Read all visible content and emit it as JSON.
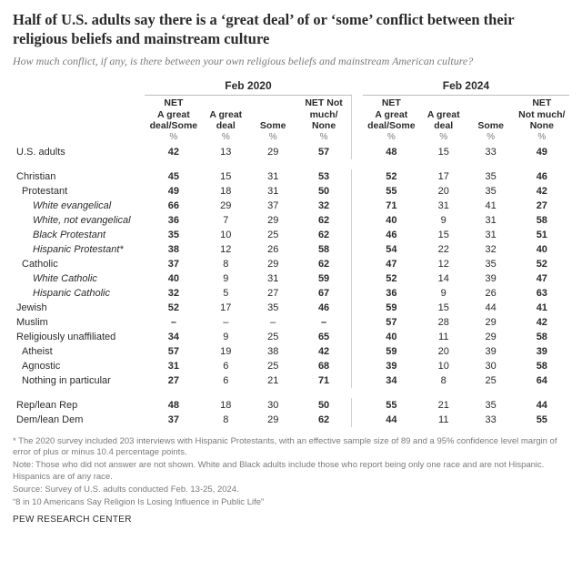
{
  "title": "Half of U.S. adults say there is a ‘great deal’ of or ‘some’ conflict between their religious beliefs and mainstream culture",
  "subtitle": "How much conflict, if any, is there between your own religious beliefs and mainstream American culture?",
  "years": {
    "y1": "Feb 2020",
    "y2": "Feb 2024"
  },
  "col_headers": {
    "net_some": "NET\nA great\ndeal/Some",
    "great": "A great\ndeal",
    "some": "Some",
    "net_none": "NET Not\nmuch/\nNone",
    "net_none2": "NET\nNot much/\nNone"
  },
  "pct": "%",
  "rows": {
    "us_adults": {
      "label": "U.S. adults",
      "y1": [
        "42",
        "13",
        "29",
        "57"
      ],
      "y2": [
        "48",
        "15",
        "33",
        "49"
      ]
    },
    "christian": {
      "label": "Christian",
      "y1": [
        "45",
        "15",
        "31",
        "53"
      ],
      "y2": [
        "52",
        "17",
        "35",
        "46"
      ]
    },
    "protestant": {
      "label": "Protestant",
      "y1": [
        "49",
        "18",
        "31",
        "50"
      ],
      "y2": [
        "55",
        "20",
        "35",
        "42"
      ]
    },
    "w_evang": {
      "label": "White evangelical",
      "y1": [
        "66",
        "29",
        "37",
        "32"
      ],
      "y2": [
        "71",
        "31",
        "41",
        "27"
      ]
    },
    "w_notevang": {
      "label": "White, not evangelical",
      "y1": [
        "36",
        "7",
        "29",
        "62"
      ],
      "y2": [
        "40",
        "9",
        "31",
        "58"
      ]
    },
    "b_prot": {
      "label": "Black Protestant",
      "y1": [
        "35",
        "10",
        "25",
        "62"
      ],
      "y2": [
        "46",
        "15",
        "31",
        "51"
      ]
    },
    "h_prot": {
      "label": "Hispanic Protestant*",
      "y1": [
        "38",
        "12",
        "26",
        "58"
      ],
      "y2": [
        "54",
        "22",
        "32",
        "40"
      ]
    },
    "catholic": {
      "label": "Catholic",
      "y1": [
        "37",
        "8",
        "29",
        "62"
      ],
      "y2": [
        "47",
        "12",
        "35",
        "52"
      ]
    },
    "w_cath": {
      "label": "White Catholic",
      "y1": [
        "40",
        "9",
        "31",
        "59"
      ],
      "y2": [
        "52",
        "14",
        "39",
        "47"
      ]
    },
    "h_cath": {
      "label": "Hispanic Catholic",
      "y1": [
        "32",
        "5",
        "27",
        "67"
      ],
      "y2": [
        "36",
        "9",
        "26",
        "63"
      ]
    },
    "jewish": {
      "label": "Jewish",
      "y1": [
        "52",
        "17",
        "35",
        "46"
      ],
      "y2": [
        "59",
        "15",
        "44",
        "41"
      ]
    },
    "muslim": {
      "label": "Muslim",
      "y1": [
        "–",
        "–",
        "–",
        "–"
      ],
      "y2": [
        "57",
        "28",
        "29",
        "42"
      ]
    },
    "unaffil": {
      "label": "Religiously unaffiliated",
      "y1": [
        "34",
        "9",
        "25",
        "65"
      ],
      "y2": [
        "40",
        "11",
        "29",
        "58"
      ]
    },
    "atheist": {
      "label": "Atheist",
      "y1": [
        "57",
        "19",
        "38",
        "42"
      ],
      "y2": [
        "59",
        "20",
        "39",
        "39"
      ]
    },
    "agnostic": {
      "label": "Agnostic",
      "y1": [
        "31",
        "6",
        "25",
        "68"
      ],
      "y2": [
        "39",
        "10",
        "30",
        "58"
      ]
    },
    "nothing": {
      "label": "Nothing in particular",
      "y1": [
        "27",
        "6",
        "21",
        "71"
      ],
      "y2": [
        "34",
        "8",
        "25",
        "64"
      ]
    },
    "rep": {
      "label": "Rep/lean Rep",
      "y1": [
        "48",
        "18",
        "30",
        "50"
      ],
      "y2": [
        "55",
        "21",
        "35",
        "44"
      ]
    },
    "dem": {
      "label": "Dem/lean Dem",
      "y1": [
        "37",
        "8",
        "29",
        "62"
      ],
      "y2": [
        "44",
        "11",
        "33",
        "55"
      ]
    }
  },
  "notes": {
    "n1": "* The 2020 survey included 203 interviews with Hispanic Protestants, with an effective sample size of 89 and a 95% confidence level margin of error of plus or minus 10.4 percentage points.",
    "n2": "Note: Those who did not answer are not shown. White and Black adults include those who report being only one race and are not Hispanic. Hispanics are of any race.",
    "n3": "Source: Survey of U.S. adults conducted Feb. 13-25, 2024.",
    "n4": "“8 in 10 Americans Say Religion Is Losing Influence in Public Life”"
  },
  "footer": "PEW RESEARCH CENTER"
}
